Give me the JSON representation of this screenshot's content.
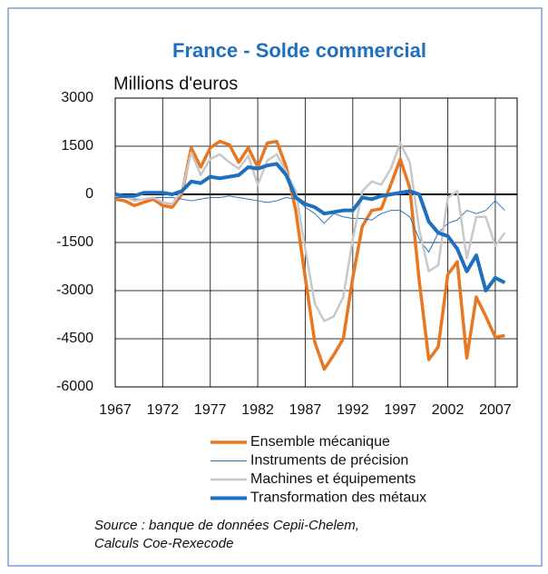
{
  "chart_data": {
    "type": "line",
    "title": "France - Solde commercial",
    "subtitle": "Millions d'euros",
    "x": [
      1967,
      1968,
      1969,
      1970,
      1971,
      1972,
      1973,
      1974,
      1975,
      1976,
      1977,
      1978,
      1979,
      1980,
      1981,
      1982,
      1983,
      1984,
      1985,
      1986,
      1987,
      1988,
      1989,
      1990,
      1991,
      1992,
      1993,
      1994,
      1995,
      1996,
      1997,
      1998,
      1999,
      2000,
      2001,
      2002,
      2003,
      2004,
      2005,
      2006,
      2007,
      2008
    ],
    "series": [
      {
        "name": "Ensemble mécanique",
        "color": "#e87722",
        "width": 3.5,
        "values": [
          -150,
          -200,
          -350,
          -250,
          -150,
          -350,
          -400,
          0,
          1450,
          850,
          1450,
          1650,
          1550,
          1000,
          1450,
          850,
          1600,
          1650,
          850,
          -500,
          -2600,
          -4600,
          -5450,
          -5000,
          -4500,
          -2600,
          -1000,
          -500,
          -450,
          300,
          1100,
          200,
          -2700,
          -5150,
          -4750,
          -2500,
          -2100,
          -5100,
          -3200,
          -3800,
          -4450,
          -4400
        ]
      },
      {
        "name": "Instruments de précision",
        "color": "#2a75c0",
        "width": 1,
        "values": [
          -100,
          -100,
          -150,
          -150,
          -100,
          -100,
          -100,
          -150,
          -200,
          -150,
          -100,
          -100,
          -50,
          -100,
          -150,
          -200,
          -250,
          -200,
          -100,
          -150,
          -400,
          -600,
          -900,
          -600,
          -700,
          -750,
          -750,
          -800,
          -600,
          -500,
          -500,
          -700,
          -1400,
          -1800,
          -1200,
          -900,
          -800,
          -500,
          -600,
          -500,
          -200,
          -500
        ]
      },
      {
        "name": "Machines et équipements",
        "color": "#c8c8c8",
        "width": 2.5,
        "values": [
          -50,
          -50,
          -200,
          -150,
          -100,
          -250,
          -300,
          100,
          1300,
          600,
          1100,
          1250,
          1000,
          800,
          1200,
          300,
          1050,
          1250,
          700,
          100,
          -1700,
          -3400,
          -3950,
          -3800,
          -3200,
          -1400,
          100,
          400,
          300,
          800,
          1600,
          1000,
          -1100,
          -2400,
          -2200,
          -100,
          100,
          -2000,
          -700,
          -700,
          -1600,
          -1200
        ]
      },
      {
        "name": "Transformation des métaux",
        "color": "#1f6fbf",
        "width": 4,
        "values": [
          0,
          -50,
          -50,
          50,
          50,
          50,
          0,
          100,
          400,
          350,
          550,
          500,
          550,
          600,
          850,
          800,
          900,
          950,
          600,
          -100,
          -300,
          -400,
          -600,
          -550,
          -500,
          -500,
          -100,
          -150,
          -50,
          0,
          50,
          100,
          0,
          -850,
          -1200,
          -1300,
          -1700,
          -2400,
          -1900,
          -3000,
          -2600,
          -2750
        ]
      }
    ],
    "xlim": [
      1967,
      2009.3
    ],
    "xticks": [
      1967,
      1972,
      1977,
      1982,
      1987,
      1992,
      1997,
      2002,
      2007
    ],
    "ylim": [
      -6000,
      3000
    ],
    "yticks": [
      -6000,
      -4500,
      -3000,
      -1500,
      0,
      1500,
      3000
    ],
    "grid": true,
    "source": [
      "Source : banque de données Cepii-Chelem,",
      "Calculs Coe-Rexecode"
    ]
  }
}
